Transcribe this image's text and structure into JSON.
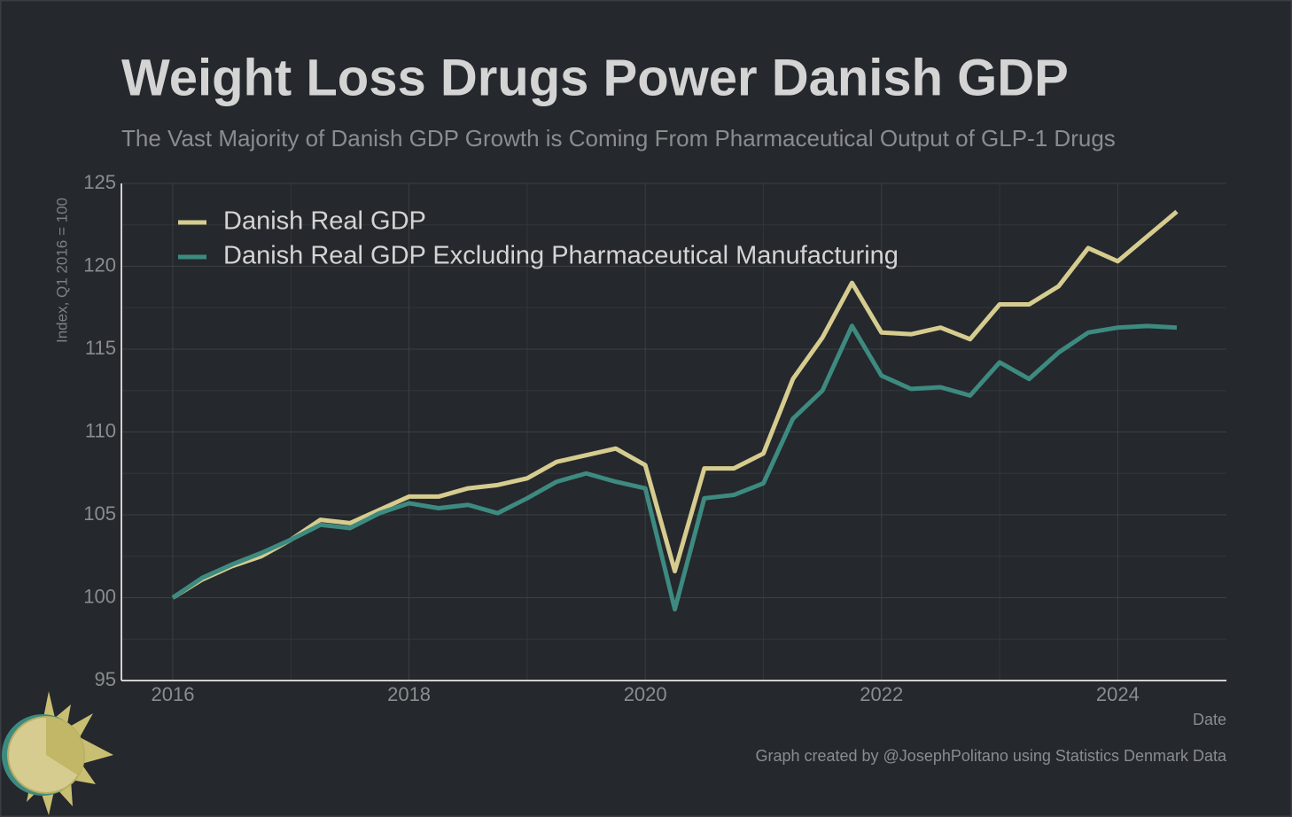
{
  "chart_data": {
    "type": "line",
    "title": "Weight Loss Drugs Power Danish GDP",
    "subtitle": "The Vast Majority of Danish GDP Growth is Coming From Pharmaceutical Output of GLP-1 Drugs",
    "y_label": "Index, Q1 2016 = 100",
    "x_label": "Date",
    "note": "Graph created by @JosephPolitano using Statistics Denmark Data",
    "x": [
      2016,
      2016.25,
      2016.5,
      2016.75,
      2017,
      2017.25,
      2017.5,
      2017.75,
      2018,
      2018.25,
      2018.5,
      2018.75,
      2019,
      2019.25,
      2019.5,
      2019.75,
      2020,
      2020.25,
      2020.5,
      2020.75,
      2021,
      2021.25,
      2021.5,
      2021.75,
      2022,
      2022.25,
      2022.5,
      2022.75,
      2023,
      2023.25,
      2023.5,
      2023.75,
      2024,
      2024.25,
      2024.5
    ],
    "series": [
      {
        "name": "Danish Real GDP",
        "color": "#d6cc8f",
        "values": [
          100,
          101.1,
          101.9,
          102.5,
          103.5,
          104.7,
          104.5,
          105.3,
          106.1,
          106.1,
          106.6,
          106.8,
          107.2,
          108.2,
          108.6,
          109.0,
          108.0,
          101.6,
          107.8,
          107.8,
          108.7,
          113.2,
          115.7,
          119.0,
          116.0,
          115.9,
          116.3,
          115.6,
          117.7,
          117.7,
          118.8,
          121.1,
          120.3,
          121.8,
          123.3
        ]
      },
      {
        "name": "Danish Real GDP Excluding Pharmaceutical Manufacturing",
        "color": "#3d8a80",
        "values": [
          100,
          101.2,
          102.0,
          102.7,
          103.5,
          104.4,
          104.2,
          105.1,
          105.7,
          105.4,
          105.6,
          105.1,
          106.0,
          107.0,
          107.5,
          107.0,
          106.6,
          99.3,
          106.0,
          106.2,
          106.9,
          110.8,
          112.5,
          116.4,
          113.4,
          112.6,
          112.7,
          112.2,
          114.2,
          113.2,
          114.8,
          116.0,
          116.3,
          116.4,
          116.3
        ]
      }
    ],
    "xlim": [
      2015.565,
      2024.92
    ],
    "xticks": [
      2016,
      2018,
      2020,
      2022,
      2024
    ],
    "ylim": [
      95,
      125
    ],
    "yticks": [
      95,
      100,
      105,
      110,
      115,
      120,
      125
    ],
    "grid": true,
    "legend": "top-left"
  }
}
